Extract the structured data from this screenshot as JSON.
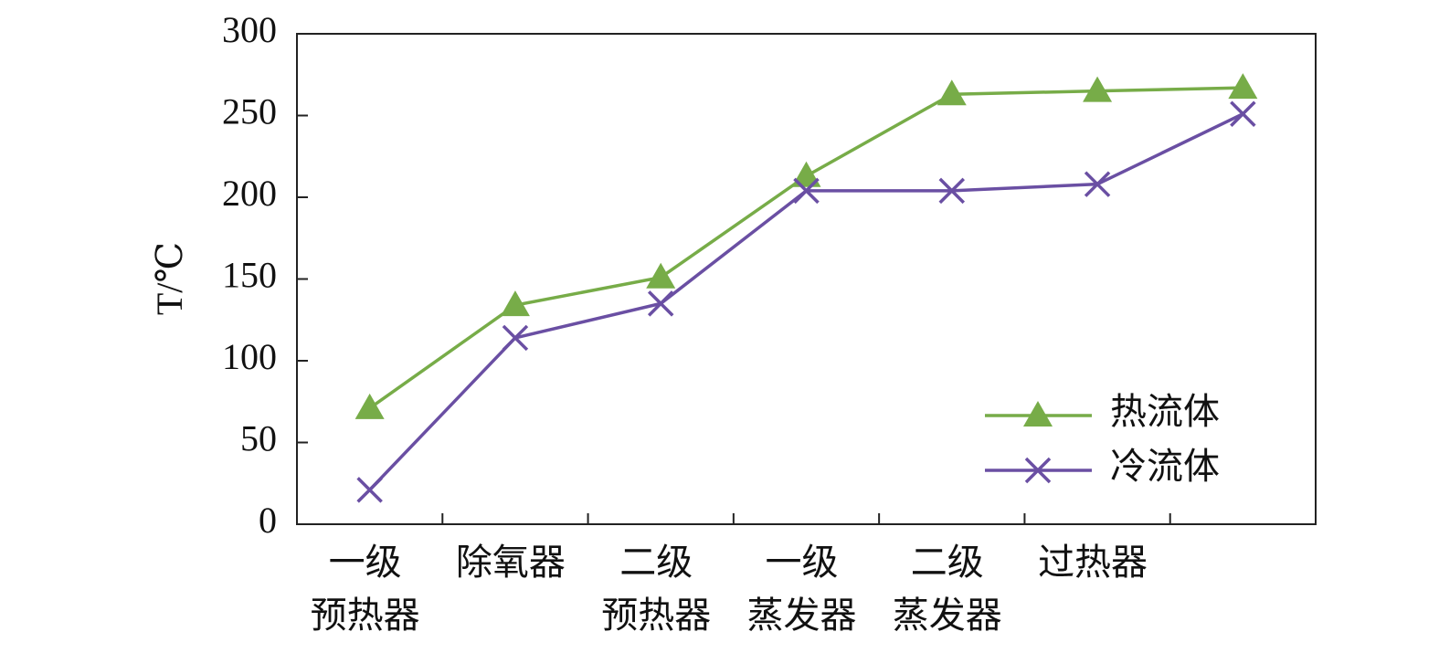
{
  "chart_data": {
    "type": "line",
    "y_label": "T/℃",
    "categories": [
      [
        "一级",
        "预热器"
      ],
      [
        "除氧器"
      ],
      [
        "二级",
        "预热器"
      ],
      [
        "一级",
        "蒸发器"
      ],
      [
        "二级",
        "蒸发器"
      ],
      [
        "过热器"
      ],
      null
    ],
    "series": [
      {
        "name": "热流体",
        "color": "#77ac48",
        "marker": "triangle",
        "values": [
          71,
          134,
          151,
          213,
          263,
          265,
          267
        ]
      },
      {
        "name": "冷流体",
        "color": "#6a4fa3",
        "marker": "x",
        "values": [
          21,
          114,
          135,
          204,
          204,
          208,
          251
        ]
      }
    ],
    "ylim": [
      0,
      300
    ],
    "yticks": [
      0,
      50,
      100,
      150,
      200,
      250,
      300
    ],
    "legend": "lower right",
    "grid": false
  }
}
